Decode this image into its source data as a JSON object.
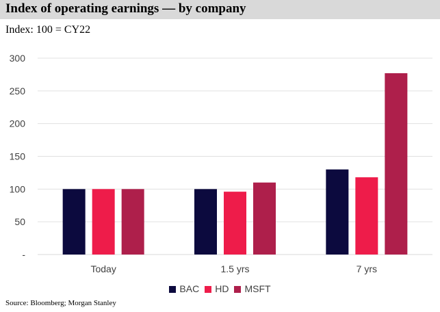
{
  "header": {
    "title": "Index of operating earnings — by company",
    "subtitle": "Index: 100 = CY22"
  },
  "footer": {
    "source": "Source: Bloomberg; Morgan Stanley"
  },
  "chart_data": {
    "type": "bar",
    "categories": [
      "Today",
      "1.5 yrs",
      "7 yrs"
    ],
    "series": [
      {
        "name": "BAC",
        "color": "#0c0a3e",
        "values": [
          100,
          100,
          130
        ]
      },
      {
        "name": "HD",
        "color": "#ee1c4a",
        "values": [
          100,
          96,
          118
        ]
      },
      {
        "name": "MSFT",
        "color": "#ae1f4b",
        "values": [
          100,
          110,
          277
        ]
      }
    ],
    "ylim": [
      0,
      300
    ],
    "yticks": [
      0,
      50,
      100,
      150,
      200,
      250,
      300
    ],
    "ytick_labels": [
      "-",
      "50",
      "100",
      "150",
      "200",
      "250",
      "300"
    ],
    "grid": true,
    "legend": "bottom"
  }
}
